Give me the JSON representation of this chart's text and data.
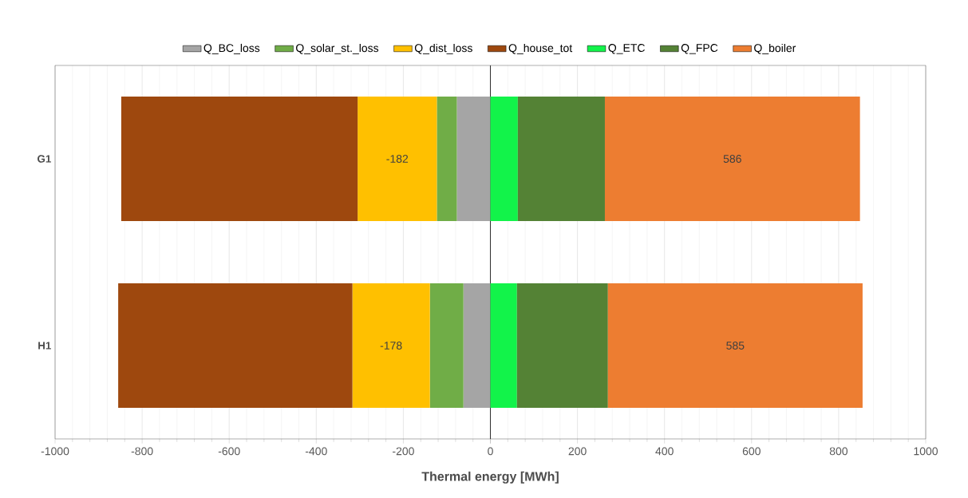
{
  "chart_data": {
    "type": "bar",
    "orientation": "horizontal",
    "stacked": true,
    "categories": [
      "G1",
      "H1"
    ],
    "series": [
      {
        "name": "Q_BC_loss",
        "color": "#a5a5a5",
        "values": [
          -77,
          -62
        ]
      },
      {
        "name": "Q_solar_st._loss",
        "color": "#70ad47",
        "values": [
          -46,
          -77
        ]
      },
      {
        "name": "Q_dist_loss",
        "color": "#ffc000",
        "values": [
          -182,
          -178
        ],
        "value_labels": [
          "-182",
          "-178"
        ]
      },
      {
        "name": "Q_house_tot",
        "color": "#9e480e",
        "values": [
          -543,
          -538
        ]
      },
      {
        "name": "Q_ETC",
        "color": "#12f34a",
        "values": [
          63,
          61
        ]
      },
      {
        "name": "Q_FPC",
        "color": "#548235",
        "values": [
          200,
          209
        ]
      },
      {
        "name": "Q_boiler",
        "color": "#ed7d31",
        "values": [
          586,
          585
        ],
        "value_labels": [
          "586",
          "585"
        ]
      }
    ],
    "xlabel": "Thermal energy [MWh]",
    "xlim": [
      -1000,
      1000
    ],
    "xticks": [
      -1000,
      -800,
      -600,
      -400,
      -200,
      0,
      200,
      400,
      600,
      800,
      1000
    ],
    "grid": "x",
    "legend": "top"
  }
}
